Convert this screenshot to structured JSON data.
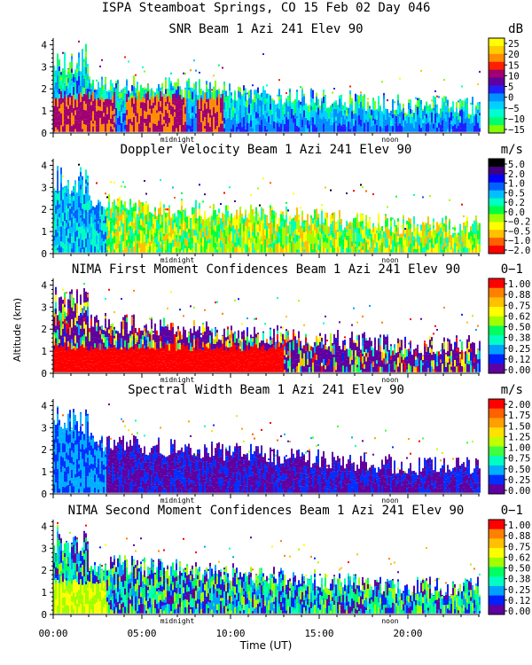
{
  "page": {
    "title": "ISPA Steamboat Springs, CO  15 Feb 02 Day 046",
    "ylabel": "Altitude (km)",
    "xlabel": "Time (UT)"
  },
  "chart_data": [
    {
      "type": "heatmap",
      "title": "SNR Beam 1 Azi 241 Elev 90",
      "unit": "dB",
      "ylim": [
        0,
        4.3
      ],
      "yticks": [
        "0",
        "1",
        "2",
        "3",
        "4"
      ],
      "colorbar_labels": [
        "25",
        "20",
        "15",
        "10",
        "5",
        "0",
        "−5",
        "−10",
        "−15"
      ],
      "colors": [
        "#ffff00",
        "#ffcc00",
        "#ff8c00",
        "#ff2000",
        "#a00070",
        "#6000a0",
        "#2020ff",
        "#0090ff",
        "#00d0ff",
        "#00ffd0",
        "#00ff70",
        "#80ff00"
      ],
      "markers": [
        "midnight",
        "noon"
      ]
    },
    {
      "type": "heatmap",
      "title": "Doppler Velocity Beam 1 Azi 241 Elev 90",
      "unit": "m/s",
      "ylim": [
        0,
        4.3
      ],
      "yticks": [
        "0",
        "1",
        "2",
        "3",
        "4"
      ],
      "colorbar_labels": [
        "5.0",
        "2.0",
        "1.0",
        "0.5",
        "0.2",
        "0.0",
        "−0.2",
        "−0.5",
        "−1.0",
        "−2.0"
      ],
      "colors": [
        "#000000",
        "#400080",
        "#0000ff",
        "#0060ff",
        "#00c0ff",
        "#00ffc0",
        "#00ff40",
        "#a0ff00",
        "#ffff00",
        "#ffc000",
        "#ff6000",
        "#ff0000"
      ],
      "markers": [
        "midnight",
        "noon"
      ]
    },
    {
      "type": "heatmap",
      "title": "NIMA First Moment Confidences Beam 1 Azi 241 Elev 90",
      "unit": "0−1",
      "ylim": [
        0,
        4.3
      ],
      "yticks": [
        "0",
        "1",
        "2",
        "3",
        "4"
      ],
      "colorbar_labels": [
        "1.00",
        "0.88",
        "0.75",
        "0.62",
        "0.50",
        "0.38",
        "0.25",
        "0.12",
        "0.00"
      ],
      "colors": [
        "#ff0000",
        "#ff8000",
        "#ffc000",
        "#ffff00",
        "#a0ff00",
        "#00ff60",
        "#00ffc0",
        "#00a0ff",
        "#0020ff",
        "#6000a0"
      ],
      "markers": [
        "midnight",
        "noon"
      ]
    },
    {
      "type": "heatmap",
      "title": "Spectral Width Beam 1 Azi 241 Elev 90",
      "unit": "m/s",
      "ylim": [
        0,
        4.3
      ],
      "yticks": [
        "0",
        "1",
        "2",
        "3",
        "4"
      ],
      "colorbar_labels": [
        "2.00",
        "1.75",
        "1.50",
        "1.25",
        "1.00",
        "0.75",
        "0.50",
        "0.25",
        "0.00"
      ],
      "colors": [
        "#ff0000",
        "#ff6000",
        "#ffa000",
        "#ffe000",
        "#c0ff00",
        "#40ff40",
        "#00ffc0",
        "#00b0ff",
        "#0030ff",
        "#6000a0"
      ],
      "markers": [
        "midnight",
        "noon"
      ]
    },
    {
      "type": "heatmap",
      "title": "NIMA Second Moment Confidences Beam 1 Azi 241 Elev 90",
      "unit": "0−1",
      "ylim": [
        0,
        4.3
      ],
      "yticks": [
        "0",
        "1",
        "2",
        "3",
        "4"
      ],
      "colorbar_labels": [
        "1.00",
        "0.88",
        "0.75",
        "0.62",
        "0.50",
        "0.38",
        "0.25",
        "0.12",
        "0.00"
      ],
      "colors": [
        "#ff0000",
        "#ff8000",
        "#ffc000",
        "#ffff00",
        "#a0ff00",
        "#00ff60",
        "#00ffc0",
        "#00a0ff",
        "#0020ff",
        "#6000a0"
      ],
      "markers": [
        "midnight",
        "noon"
      ],
      "xticks": [
        "00:00",
        "05:00",
        "10:00",
        "15:00",
        "20:00"
      ]
    }
  ]
}
